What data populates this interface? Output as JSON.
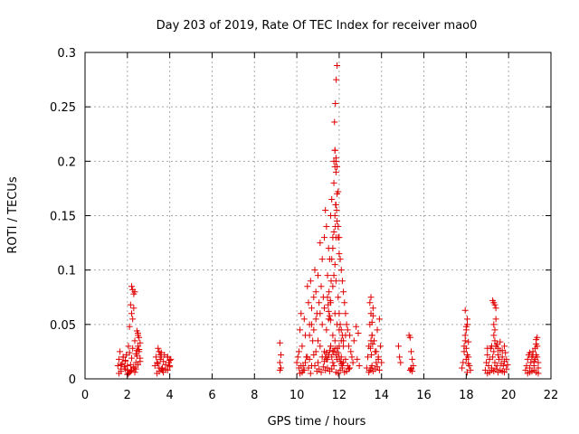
{
  "chart_data": {
    "type": "scatter",
    "title": "Day 203 of 2019, Rate Of TEC Index for receiver mao0",
    "xlabel": "GPS time / hours",
    "ylabel": "ROTI / TECUs",
    "xlim": [
      0,
      22
    ],
    "ylim": [
      0,
      0.3
    ],
    "xticks": [
      "0",
      "2",
      "4",
      "6",
      "8",
      "10",
      "12",
      "14",
      "16",
      "18",
      "20",
      "22"
    ],
    "yticks": [
      "0",
      "0.05",
      "0.1",
      "0.15",
      "0.2",
      "0.25",
      "0.3"
    ],
    "grid": true,
    "marker": "+",
    "color": "#e00000",
    "series": [
      {
        "name": "ROTI",
        "x": [
          1.55,
          1.6,
          1.65,
          1.7,
          1.75,
          1.8,
          1.85,
          1.9,
          1.95,
          2.0,
          2.05,
          2.1,
          2.15,
          2.2,
          2.25,
          2.3,
          2.35,
          2.4,
          2.45,
          2.5,
          2.55,
          2.6,
          1.6,
          1.7,
          1.9,
          2.0,
          2.1,
          2.2,
          2.3,
          2.4,
          2.5,
          2.6,
          2.2,
          2.25,
          2.3,
          2.35,
          2.2,
          2.25,
          2.3,
          2.1,
          2.15,
          2.45,
          2.5,
          2.55,
          2.5,
          2.55,
          1.7,
          1.8,
          1.9,
          2.4,
          2.45,
          2.0,
          2.05,
          2.15,
          2.35,
          2.6,
          3.3,
          3.35,
          3.4,
          3.45,
          3.5,
          3.55,
          3.6,
          3.65,
          3.7,
          3.75,
          3.8,
          3.9,
          3.95,
          4.0,
          4.05,
          3.4,
          3.5,
          3.6,
          3.7,
          3.9,
          4.0,
          3.5,
          3.55,
          3.6,
          3.9,
          4.0,
          3.45,
          3.65,
          3.8,
          9.2,
          9.25,
          9.2,
          9.25,
          9.2,
          10.0,
          10.05,
          10.1,
          10.15,
          10.2,
          10.25,
          10.3,
          10.35,
          10.4,
          10.45,
          10.5,
          10.55,
          10.6,
          10.65,
          10.7,
          10.75,
          10.8,
          10.85,
          10.9,
          10.95,
          11.0,
          11.05,
          11.1,
          11.15,
          11.2,
          11.25,
          11.3,
          11.35,
          11.4,
          11.45,
          11.5,
          11.55,
          11.6,
          11.65,
          11.7,
          11.75,
          11.8,
          11.85,
          11.9,
          11.95,
          12.0,
          12.05,
          12.1,
          12.15,
          12.2,
          12.25,
          12.3,
          12.35,
          12.4,
          12.45,
          12.5,
          12.55,
          12.6,
          12.65,
          12.7,
          10.1,
          10.2,
          10.3,
          10.4,
          10.5,
          10.6,
          10.7,
          10.8,
          10.9,
          11.0,
          11.1,
          11.2,
          11.3,
          11.4,
          11.5,
          11.6,
          11.7,
          11.8,
          11.9,
          12.0,
          12.1,
          12.2,
          12.3,
          12.4,
          12.5,
          10.15,
          10.25,
          10.35,
          10.55,
          10.65,
          10.85,
          10.95,
          11.05,
          11.15,
          11.25,
          11.35,
          11.45,
          11.55,
          11.65,
          11.75,
          11.85,
          11.95,
          12.05,
          12.15,
          12.25,
          12.35,
          12.45,
          10.6,
          10.7,
          10.8,
          10.9,
          11.0,
          11.1,
          11.2,
          11.3,
          11.4,
          11.5,
          11.6,
          11.7,
          11.8,
          11.9,
          12.0,
          12.1,
          12.2,
          12.3,
          11.3,
          11.35,
          11.4,
          11.45,
          11.5,
          11.55,
          11.6,
          11.65,
          11.7,
          11.75,
          11.8,
          11.85,
          11.9,
          11.95,
          12.0,
          12.05,
          12.1,
          12.15,
          11.65,
          11.7,
          11.75,
          11.8,
          11.85,
          11.9,
          11.95,
          12.0,
          11.75,
          11.8,
          11.85,
          11.9,
          11.95,
          11.78,
          11.82,
          11.86,
          11.9,
          11.8,
          11.85,
          11.83,
          11.88,
          11.82,
          11.85,
          11.5,
          11.55,
          11.6,
          11.45,
          11.52,
          11.58,
          11.48,
          11.62,
          11.7,
          11.75,
          11.8,
          11.85,
          11.95,
          12.0,
          12.05,
          12.1,
          12.15,
          12.2,
          12.8,
          12.9,
          12.85,
          12.95,
          13.3,
          13.35,
          13.4,
          13.45,
          13.5,
          13.55,
          13.6,
          13.65,
          13.7,
          13.75,
          13.8,
          13.85,
          13.9,
          13.95,
          14.0,
          13.4,
          13.45,
          13.5,
          13.55,
          13.6,
          13.7,
          13.8,
          13.9,
          13.45,
          13.5,
          13.55,
          13.6,
          13.75,
          13.85,
          13.5,
          13.55,
          13.48,
          13.52,
          13.58,
          14.8,
          14.85,
          14.9,
          15.3,
          15.35,
          15.4,
          15.45,
          15.5,
          15.35,
          15.4,
          15.45,
          15.4,
          17.8,
          17.85,
          17.9,
          17.95,
          18.0,
          18.05,
          18.1,
          18.15,
          18.2,
          17.9,
          17.95,
          18.0,
          18.05,
          18.1,
          17.95,
          18.0,
          18.05,
          18.0,
          18.1,
          18.05,
          18.9,
          18.95,
          19.0,
          19.05,
          19.1,
          19.15,
          19.2,
          19.25,
          19.3,
          19.35,
          19.4,
          19.45,
          19.5,
          19.55,
          19.6,
          19.65,
          19.7,
          19.75,
          19.8,
          19.85,
          19.9,
          19.95,
          19.0,
          19.1,
          19.2,
          19.3,
          19.4,
          19.5,
          19.6,
          19.7,
          19.8,
          19.9,
          19.25,
          19.3,
          19.35,
          19.4,
          19.3,
          19.35,
          19.4,
          19.3,
          19.35,
          19.4,
          19.45,
          19.5,
          19.6,
          19.7,
          19.2,
          19.0,
          19.8,
          20.8,
          20.85,
          20.9,
          20.95,
          21.0,
          21.05,
          21.1,
          21.15,
          21.2,
          21.25,
          21.3,
          21.35,
          21.4,
          20.9,
          21.0,
          21.1,
          21.2,
          21.3,
          21.4,
          21.0,
          21.1,
          21.25,
          21.3,
          21.35,
          21.3,
          21.35,
          21.4,
          21.2,
          21.15
        ],
        "y": [
          0.012,
          0.018,
          0.025,
          0.009,
          0.014,
          0.02,
          0.011,
          0.016,
          0.022,
          0.008,
          0.03,
          0.024,
          0.013,
          0.019,
          0.028,
          0.01,
          0.035,
          0.015,
          0.021,
          0.04,
          0.027,
          0.033,
          0.005,
          0.007,
          0.009,
          0.012,
          0.006,
          0.008,
          0.011,
          0.009,
          0.013,
          0.016,
          0.085,
          0.082,
          0.078,
          0.08,
          0.06,
          0.055,
          0.065,
          0.048,
          0.068,
          0.044,
          0.042,
          0.038,
          0.03,
          0.025,
          0.013,
          0.02,
          0.017,
          0.023,
          0.026,
          0.004,
          0.005,
          0.007,
          0.006,
          0.019,
          0.012,
          0.02,
          0.015,
          0.028,
          0.01,
          0.018,
          0.024,
          0.008,
          0.016,
          0.022,
          0.013,
          0.02,
          0.015,
          0.011,
          0.018,
          0.005,
          0.007,
          0.009,
          0.006,
          0.008,
          0.012,
          0.025,
          0.022,
          0.02,
          0.02,
          0.017,
          0.014,
          0.01,
          0.009,
          0.033,
          0.022,
          0.015,
          0.01,
          0.008,
          0.015,
          0.02,
          0.025,
          0.045,
          0.06,
          0.03,
          0.012,
          0.055,
          0.04,
          0.02,
          0.085,
          0.07,
          0.05,
          0.09,
          0.065,
          0.035,
          0.075,
          0.1,
          0.08,
          0.06,
          0.095,
          0.07,
          0.125,
          0.085,
          0.11,
          0.075,
          0.13,
          0.155,
          0.14,
          0.095,
          0.12,
          0.11,
          0.15,
          0.165,
          0.13,
          0.18,
          0.21,
          0.2,
          0.17,
          0.14,
          0.13,
          0.11,
          0.1,
          0.09,
          0.08,
          0.07,
          0.06,
          0.05,
          0.045,
          0.03,
          0.04,
          0.025,
          0.02,
          0.015,
          0.035,
          0.01,
          0.012,
          0.008,
          0.015,
          0.02,
          0.018,
          0.012,
          0.022,
          0.025,
          0.015,
          0.03,
          0.02,
          0.025,
          0.018,
          0.022,
          0.03,
          0.025,
          0.035,
          0.028,
          0.03,
          0.02,
          0.015,
          0.018,
          0.012,
          0.01,
          0.005,
          0.006,
          0.008,
          0.01,
          0.005,
          0.012,
          0.007,
          0.009,
          0.006,
          0.011,
          0.008,
          0.01,
          0.007,
          0.009,
          0.012,
          0.006,
          0.005,
          0.008,
          0.01,
          0.006,
          0.007,
          0.009,
          0.04,
          0.05,
          0.045,
          0.055,
          0.035,
          0.06,
          0.05,
          0.065,
          0.045,
          0.055,
          0.07,
          0.04,
          0.06,
          0.05,
          0.045,
          0.035,
          0.03,
          0.04,
          0.016,
          0.02,
          0.024,
          0.018,
          0.022,
          0.026,
          0.03,
          0.02,
          0.015,
          0.025,
          0.028,
          0.022,
          0.018,
          0.024,
          0.02,
          0.016,
          0.014,
          0.012,
          0.11,
          0.12,
          0.135,
          0.15,
          0.16,
          0.145,
          0.13,
          0.115,
          0.2,
          0.21,
          0.203,
          0.195,
          0.172,
          0.236,
          0.253,
          0.275,
          0.288,
          0.195,
          0.19,
          0.16,
          0.155,
          0.14,
          0.13,
          0.062,
          0.058,
          0.054,
          0.075,
          0.08,
          0.072,
          0.068,
          0.09,
          0.085,
          0.095,
          0.105,
          0.09,
          0.075,
          0.06,
          0.05,
          0.045,
          0.04,
          0.035,
          0.048,
          0.042,
          0.018,
          0.012,
          0.01,
          0.02,
          0.03,
          0.05,
          0.075,
          0.04,
          0.065,
          0.035,
          0.025,
          0.015,
          0.045,
          0.02,
          0.055,
          0.03,
          0.015,
          0.006,
          0.008,
          0.01,
          0.012,
          0.007,
          0.009,
          0.011,
          0.008,
          0.07,
          0.06,
          0.052,
          0.058,
          0.025,
          0.018,
          0.035,
          0.04,
          0.028,
          0.022,
          0.032,
          0.03,
          0.02,
          0.015,
          0.04,
          0.038,
          0.025,
          0.018,
          0.012,
          0.008,
          0.01,
          0.007,
          0.009,
          0.01,
          0.015,
          0.025,
          0.035,
          0.045,
          0.055,
          0.02,
          0.012,
          0.008,
          0.03,
          0.04,
          0.018,
          0.022,
          0.014,
          0.063,
          0.048,
          0.05,
          0.028,
          0.034,
          0.006,
          0.008,
          0.015,
          0.022,
          0.012,
          0.018,
          0.028,
          0.01,
          0.02,
          0.025,
          0.015,
          0.03,
          0.012,
          0.022,
          0.018,
          0.026,
          0.014,
          0.02,
          0.012,
          0.016,
          0.024,
          0.018,
          0.013,
          0.005,
          0.006,
          0.008,
          0.007,
          0.009,
          0.006,
          0.008,
          0.007,
          0.006,
          0.009,
          0.072,
          0.07,
          0.068,
          0.065,
          0.05,
          0.045,
          0.055,
          0.04,
          0.035,
          0.03,
          0.032,
          0.028,
          0.034,
          0.026,
          0.03,
          0.028,
          0.03,
          0.008,
          0.012,
          0.018,
          0.022,
          0.01,
          0.015,
          0.02,
          0.025,
          0.012,
          0.018,
          0.022,
          0.03,
          0.015,
          0.005,
          0.006,
          0.007,
          0.008,
          0.006,
          0.005,
          0.024,
          0.02,
          0.028,
          0.036,
          0.038,
          0.032,
          0.02,
          0.01,
          0.016,
          0.022
        ]
      }
    ]
  }
}
